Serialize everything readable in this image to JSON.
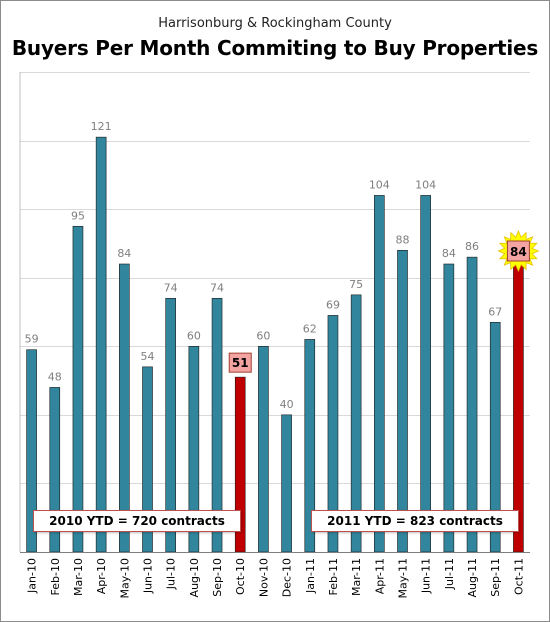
{
  "colors": {
    "bar": "#31859c",
    "highlight_bar": "#c00000",
    "highlight_label_bg": "#f4a3a3",
    "burst": "#ffff00",
    "grid": "#d9d9d9",
    "ytd_border": "#c0504d"
  },
  "chart_data": {
    "type": "bar",
    "subtitle": "Harrisonburg & Rockingham County",
    "title": "Buyers Per Month Commiting to Buy Properties",
    "categories": [
      "Jan-10",
      "Feb-10",
      "Mar-10",
      "Apr-10",
      "May-10",
      "Jun-10",
      "Jul-10",
      "Aug-10",
      "Sep-10",
      "Oct-10",
      "Nov-10",
      "Dec-10",
      "Jan-11",
      "Feb-11",
      "Mar-11",
      "Apr-11",
      "May-11",
      "Jun-11",
      "Jul-11",
      "Aug-11",
      "Sep-11",
      "Oct-11"
    ],
    "values": [
      59,
      48,
      95,
      121,
      84,
      54,
      74,
      60,
      74,
      51,
      60,
      40,
      62,
      69,
      75,
      104,
      88,
      104,
      84,
      86,
      67,
      84
    ],
    "highlighted_categories": [
      "Oct-10",
      "Oct-11"
    ],
    "starburst_category": "Oct-11",
    "ylim": [
      0,
      140
    ],
    "y_gridline_step": 20,
    "y_tick_labels_shown": false,
    "grid": true,
    "annotations": [
      {
        "label": "2010 YTD = 720 contracts",
        "position": "bottom-left"
      },
      {
        "label": "2011 YTD = 823 contracts",
        "position": "bottom-right"
      }
    ]
  }
}
